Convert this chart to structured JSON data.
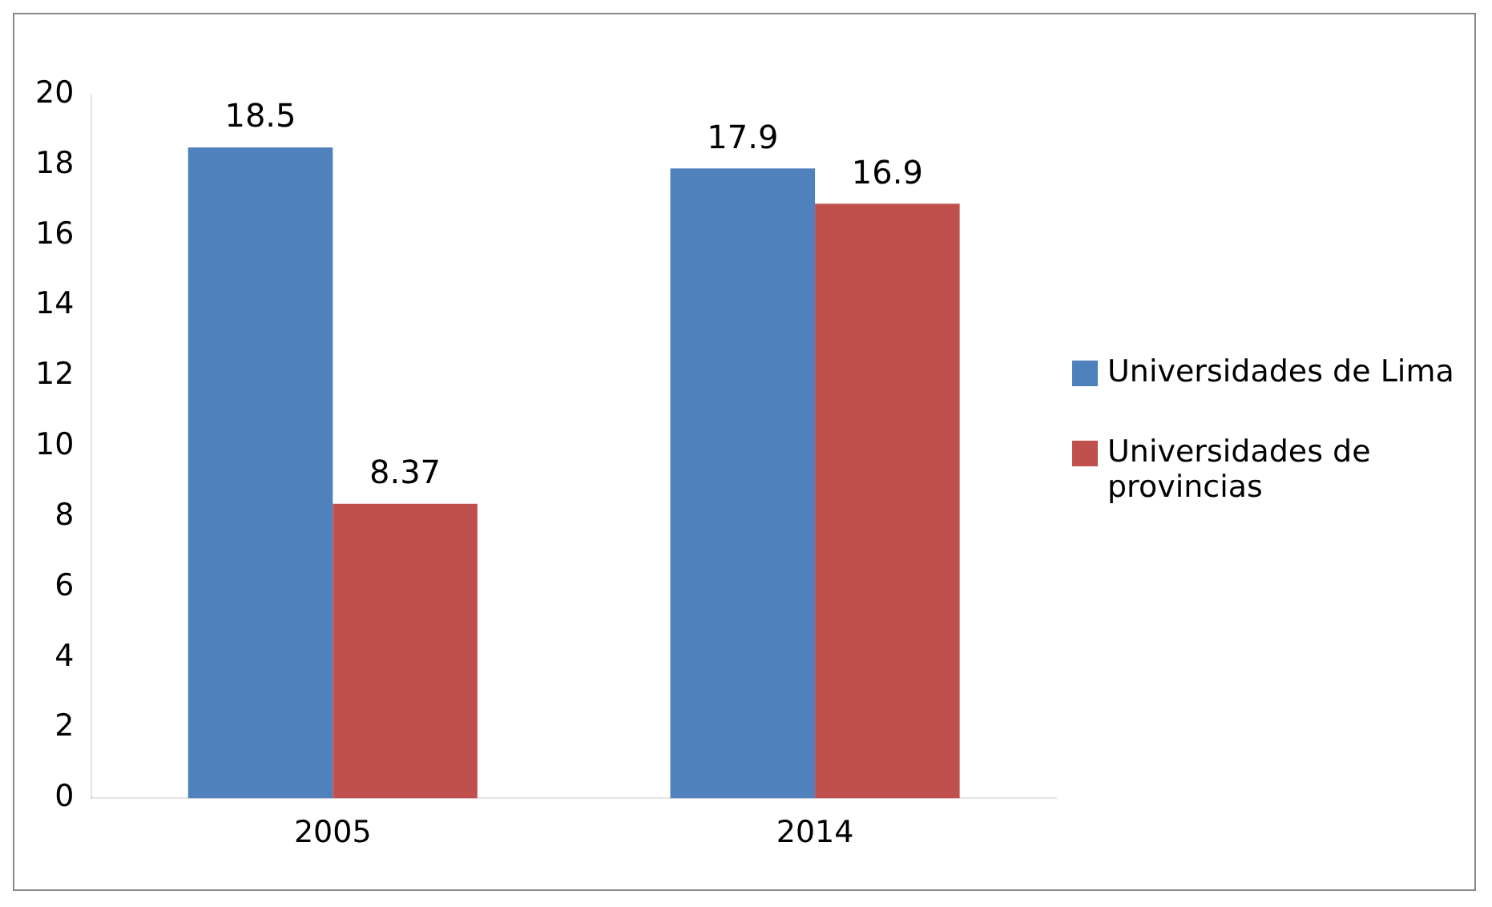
{
  "chart_data": {
    "type": "bar",
    "categories": [
      "2005",
      "2014"
    ],
    "series": [
      {
        "name": "Universidades de Lima",
        "color": "#4f81bd",
        "values": [
          18.5,
          17.9
        ]
      },
      {
        "name": "Universidades de provincias",
        "color": "#c0504d",
        "values": [
          8.37,
          16.9
        ]
      }
    ],
    "ylim": [
      0,
      20
    ],
    "yticks": [
      0,
      2,
      4,
      6,
      8,
      10,
      12,
      14,
      16,
      18,
      20
    ],
    "grid": false,
    "legend": "right",
    "data_labels": true
  }
}
